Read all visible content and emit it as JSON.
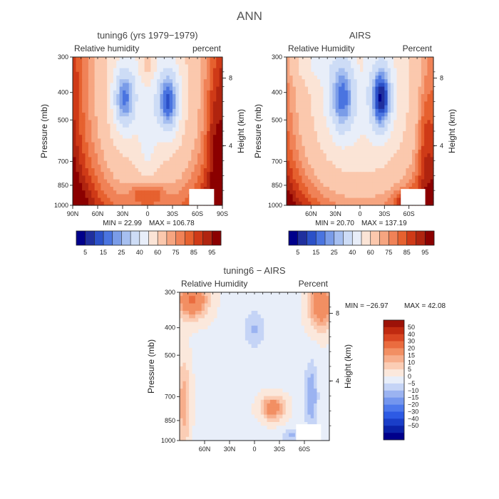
{
  "page_title": "ANN",
  "colors": {
    "axis": "#222222",
    "missing": "#ffffff",
    "abs_scale": [
      "#00008b",
      "#1f2f9e",
      "#2b50c8",
      "#4a74e0",
      "#7a9ce8",
      "#a6bff0",
      "#cddcf6",
      "#e8eef9",
      "#fbe4d6",
      "#fbc8ad",
      "#f6a580",
      "#f08257",
      "#e6612f",
      "#cf3a17",
      "#b0240f",
      "#8b0000"
    ],
    "diff_scale": [
      "#00008b",
      "#0b22a8",
      "#1a3ec8",
      "#2d5ae4",
      "#4d78ec",
      "#7496ee",
      "#9bb3f1",
      "#c5d4f6",
      "#e8eef9",
      "#fbe8dc",
      "#fbcdb5",
      "#f7ae8c",
      "#f28f63",
      "#ea6c3f",
      "#d94622",
      "#c02a10",
      "#9c1208"
    ]
  },
  "chart_data": [
    {
      "type": "heatmap",
      "id": "model",
      "title": "tuning6 (yrs 1979−1979)",
      "left_label": "Relative humidity",
      "right_label": "percent",
      "xlabel": "",
      "ylabel": "Pressure (mb)",
      "y2label": "Height (km)",
      "x_ticks": [
        "90N",
        "60N",
        "30N",
        "0",
        "30S",
        "60S",
        "90S"
      ],
      "y_ticks": [
        "300",
        "400",
        "500",
        "700",
        "850",
        "1000"
      ],
      "y2_ticks": [
        "8",
        "4"
      ],
      "min_text": "MIN = 22.99",
      "max_text": "MAX = 106.78",
      "levels": [
        5,
        10,
        15,
        20,
        25,
        30,
        40,
        50,
        60,
        70,
        75,
        80,
        85,
        90,
        95
      ],
      "level_labels": [
        "5",
        "15",
        "25",
        "40",
        "60",
        "75",
        "85",
        "95"
      ],
      "ylim": [
        300,
        1000
      ],
      "xlim": [
        90,
        -90
      ]
    },
    {
      "type": "heatmap",
      "id": "obs",
      "title": "AIRS",
      "left_label": "Relative Humidity",
      "right_label": "Percent",
      "xlabel": "",
      "ylabel": "Pressure (mb)",
      "y2label": "Height (km)",
      "x_ticks": [
        "60N",
        "30N",
        "0",
        "30S",
        "60S"
      ],
      "y_ticks": [
        "300",
        "400",
        "500",
        "700",
        "850",
        "1000"
      ],
      "y2_ticks": [
        "8",
        "4"
      ],
      "min_text": "MIN = 20.70",
      "max_text": "MAX = 137.19",
      "levels": [
        5,
        10,
        15,
        20,
        25,
        30,
        40,
        50,
        60,
        70,
        75,
        80,
        85,
        90,
        95
      ],
      "level_labels": [
        "5",
        "15",
        "25",
        "40",
        "60",
        "75",
        "85",
        "95"
      ],
      "ylim": [
        300,
        1000
      ],
      "xlim": [
        90,
        -90
      ]
    },
    {
      "type": "heatmap",
      "id": "diff",
      "title": "tuning6 − AIRS",
      "left_label": "Relative Humidity",
      "right_label": "Percent",
      "xlabel": "",
      "ylabel": "Pressure (mb)",
      "y2label": "Height (km)",
      "x_ticks": [
        "60N",
        "30N",
        "0",
        "30S",
        "60S"
      ],
      "y_ticks": [
        "300",
        "400",
        "500",
        "700",
        "850",
        "1000"
      ],
      "y2_ticks": [
        "8",
        "4"
      ],
      "min_text": "MIN = −26.97",
      "max_text": "MAX =   42.08",
      "levels": [
        -50,
        -40,
        -30,
        -20,
        -15,
        -10,
        -5,
        0,
        5,
        10,
        15,
        20,
        30,
        40,
        50
      ],
      "level_labels": [
        "50",
        "40",
        "30",
        "20",
        "15",
        "10",
        "5",
        "0",
        "−5",
        "−10",
        "−15",
        "−20",
        "−30",
        "−40",
        "−50"
      ],
      "ylim": [
        300,
        1000
      ],
      "xlim": [
        90,
        -90
      ]
    }
  ]
}
